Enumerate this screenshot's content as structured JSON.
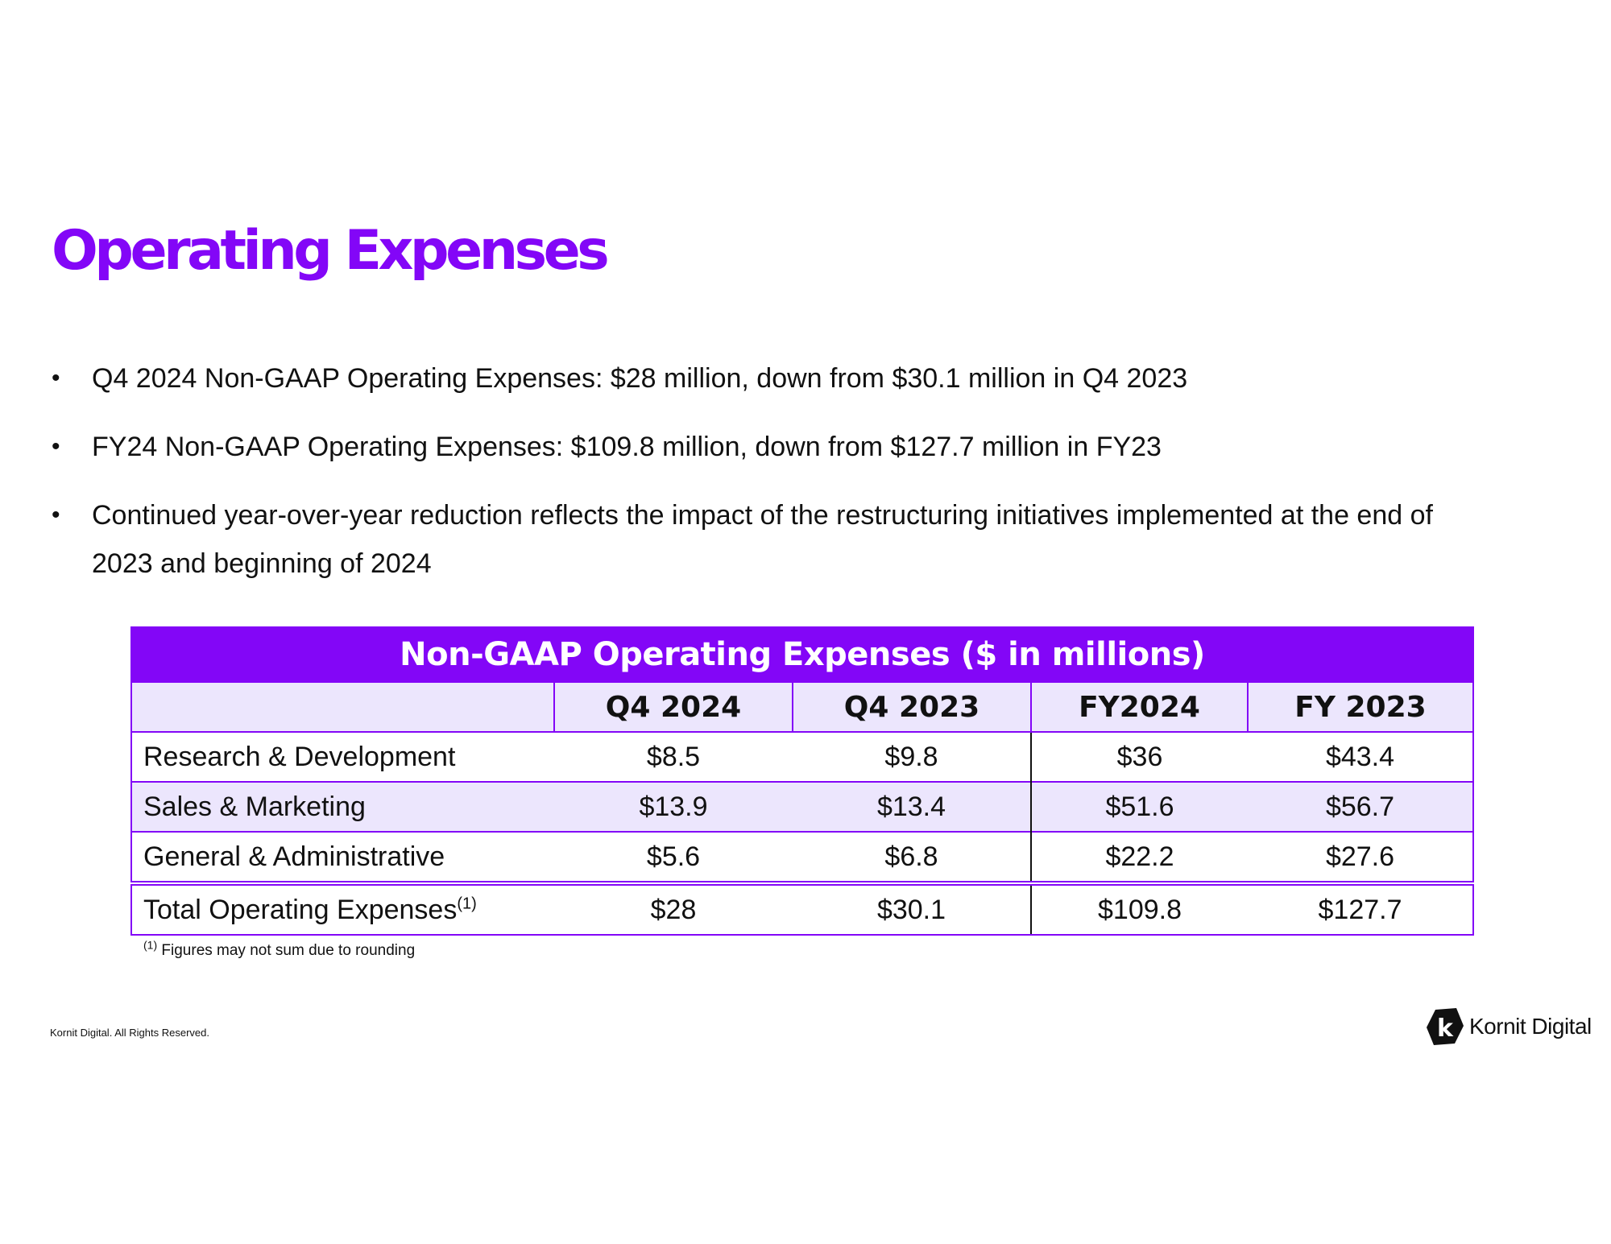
{
  "title": "Operating Expenses",
  "bullets": [
    "Q4 2024 Non-GAAP Operating Expenses: $28 million, down from $30.1 million in Q4 2023",
    "FY24 Non-GAAP Operating Expenses: $109.8 million, down from $127.7 million in FY23",
    "Continued year-over-year reduction reflects the impact of the restructuring initiatives implemented at the end of 2023 and beginning of 2024"
  ],
  "bullet_symbol": "•",
  "table": {
    "title": "Non-GAAP Operating Expenses ($ in millions)",
    "columns": [
      "",
      "Q4 2024",
      "Q4 2023",
      "FY2024",
      "FY 2023"
    ],
    "rows": [
      {
        "label": "Research & Development",
        "values": [
          "$8.5",
          "$9.8",
          "$36",
          "$43.4"
        ]
      },
      {
        "label": "Sales & Marketing",
        "values": [
          "$13.9",
          "$13.4",
          "$51.6",
          "$56.7"
        ]
      },
      {
        "label": "General & Administrative",
        "values": [
          "$5.6",
          "$6.8",
          "$22.2",
          "$27.6"
        ]
      }
    ],
    "total": {
      "label": "Total Operating Expenses",
      "footnote_mark": "(1)",
      "values": [
        "$28",
        "$30.1",
        "$109.8",
        "$127.7"
      ]
    }
  },
  "footnote": {
    "mark": "(1)",
    "text": "Figures may not sum due to rounding"
  },
  "copyright": "Kornit Digital. All Rights Reserved.",
  "logo": {
    "letter": "k",
    "text": "Kornit Digital"
  },
  "colors": {
    "accent": "#8306f7",
    "row_shade": "#ece6fd",
    "text": "#111111"
  }
}
